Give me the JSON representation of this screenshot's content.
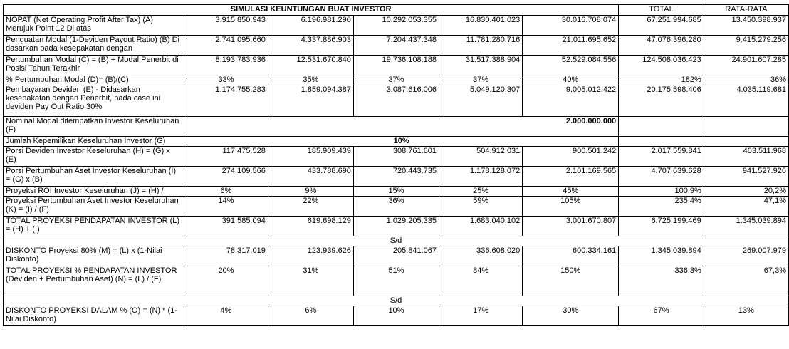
{
  "header": {
    "title": "SIMULASI KEUNTUNGAN BUAT INVESTOR",
    "total": "TOTAL",
    "rata_rata": "RATA-RATA"
  },
  "rows": {
    "nopat": {
      "label": "NOPAT (Net Operating Profit After Tax) (A) Merujuk Point 12 Di atas",
      "values": [
        "3.915.850.943",
        "6.196.981.290",
        "10.292.053.355",
        "16.830.401.023",
        "30.016.708.074"
      ],
      "total": "67.251.994.685",
      "avg": "13.450.398.937"
    },
    "penguatan": {
      "label": "Penguatan Modal (1-Deviden Payout Ratio) (B) Di dasarkan pada kesepakatan dengan",
      "values": [
        "2.741.095.660",
        "4.337.886.903",
        "7.204.437.348",
        "11.781.280.716",
        "21.011.695.652"
      ],
      "total": "47.076.396.280",
      "avg": "9.415.279.256"
    },
    "pertumbuhan": {
      "label": "Pertumbuhan Modal (C) = (B) + Modal Penerbit di Posisi Tahun Terakhir",
      "values": [
        "8.193.783.936",
        "12.531.670.840",
        "19.736.108.188",
        "31.517.388.904",
        "52.529.084.556"
      ],
      "total": "124.508.036.423",
      "avg": "24.901.607.285"
    },
    "pct_pertumbuhan": {
      "label": "% Pertumbuhan Modal (D)= (B)/(C)",
      "values": [
        "33%",
        "35%",
        "37%",
        "37%",
        "40%"
      ],
      "total": "182%",
      "avg": "36%"
    },
    "dividen": {
      "label": "Pembayaran Deviden (E) - Didasarkan kesepakatan dengan Penerbit, pada case ini deviden Pay Out Ratio 30%",
      "values": [
        "1.174.755.283",
        "1.859.094.387",
        "3.087.616.006",
        "5.049.120.307",
        "9.005.012.422"
      ],
      "total": "20.175.598.406",
      "avg": "4.035.119.681"
    },
    "nominal": {
      "label": "Nominal Modal ditempatkan Investor Keseluruhan (F)",
      "value": "2.000.000.000"
    },
    "kepemilikan": {
      "label": "Jumlah Kepemilikan Keseluruhan Investor (G)",
      "value": "10%"
    },
    "porsi_dividen": {
      "label": "Porsi Deviden Investor Keseluruhan (H) = (G) x (E)",
      "values": [
        "117.475.528",
        "185.909.439",
        "308.761.601",
        "504.912.031",
        "900.501.242"
      ],
      "total": "2.017.559.841",
      "avg": "403.511.968"
    },
    "porsi_aset": {
      "label": "Porsi Pertumbuhan Aset Investor Keseluruhan (I) = (G) x (B)",
      "values": [
        "274.109.566",
        "433.788.690",
        "720.443.735",
        "1.178.128.072",
        "2.101.169.565"
      ],
      "total": "4.707.639.628",
      "avg": "941.527.926"
    },
    "roi": {
      "label": "Proyeksi ROI Investor Keseluruhan (J) = (H) /",
      "values": [
        "6%",
        "9%",
        "15%",
        "25%",
        "45%"
      ],
      "total": "100,9%",
      "avg": "20,2%"
    },
    "proyeksi_aset": {
      "label": "Proyeksi Pertumbuhan Aset Investor Keseluruhan (K) = (I) / (F)",
      "values": [
        "14%",
        "22%",
        "36%",
        "59%",
        "105%"
      ],
      "total": "235,4%",
      "avg": "47,1%"
    },
    "total_pendapatan": {
      "label": "TOTAL PROYEKSI PENDAPATAN INVESTOR (L) = (H) + (I)",
      "values": [
        "391.585.094",
        "619.698.129",
        "1.029.205.335",
        "1.683.040.102",
        "3.001.670.807"
      ],
      "total": "6.725.199.469",
      "avg": "1.345.039.894"
    },
    "sd1": {
      "label": "S/d"
    },
    "diskonto": {
      "label": "DISKONTO Proyeksi 80% (M) = (L) x (1-Nilai Diskonto)",
      "values": [
        "78.317.019",
        "123.939.626",
        "205.841.067",
        "336.608.020",
        "600.334.161"
      ],
      "total": "1.345.039.894",
      "avg": "269.007.979"
    },
    "total_pct": {
      "label": "TOTAL PROYEKSI % PENDAPATAN INVESTOR (Deviden + Pertumbuhan Aset) (N) = (L) / (F)",
      "values": [
        "20%",
        "31%",
        "51%",
        "84%",
        "150%"
      ],
      "total": "336,3%",
      "avg": "67,3%"
    },
    "sd2": {
      "label": "S/d"
    },
    "diskonto_pct": {
      "label": "DISKONTO PROYEKSI DALAM % (O) = (N) * (1-Nilai Diskonto)",
      "values": [
        "4%",
        "6%",
        "10%",
        "17%",
        "30%"
      ],
      "total": "67%",
      "avg": "13%"
    }
  }
}
